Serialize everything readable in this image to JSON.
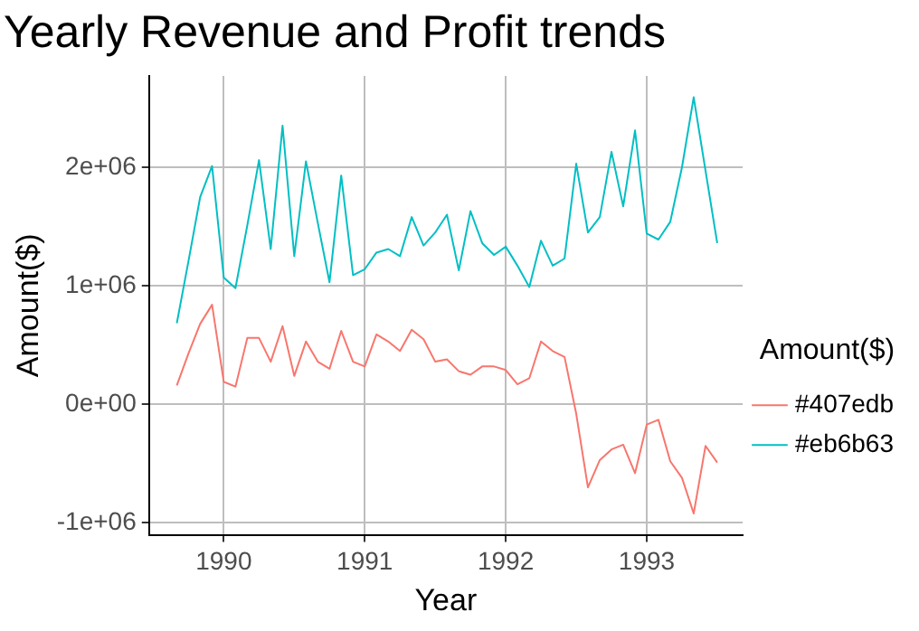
{
  "chart_data": {
    "type": "line",
    "title": "Yearly Revenue and Profit trends",
    "xlabel": "Year",
    "ylabel": "Amount($)",
    "legend_title": "Amount($)",
    "x": [
      1989.667,
      1989.75,
      1989.833,
      1989.917,
      1990,
      1990.083,
      1990.167,
      1990.25,
      1990.333,
      1990.417,
      1990.5,
      1990.583,
      1990.667,
      1990.75,
      1990.833,
      1990.917,
      1991,
      1991.083,
      1991.167,
      1991.25,
      1991.333,
      1991.417,
      1991.5,
      1991.583,
      1991.667,
      1991.75,
      1991.833,
      1991.917,
      1992,
      1992.083,
      1992.167,
      1992.25,
      1992.333,
      1992.417,
      1992.5,
      1992.583,
      1992.667,
      1992.75,
      1992.833,
      1992.917,
      1993,
      1993.083,
      1993.167,
      1993.25,
      1993.333,
      1993.417,
      1993.5
    ],
    "series": [
      {
        "name": "#407edb",
        "color": "#f8766d",
        "values": [
          160000,
          430000,
          680000,
          840000,
          190000,
          150000,
          560000,
          560000,
          360000,
          660000,
          240000,
          530000,
          360000,
          300000,
          620000,
          360000,
          320000,
          590000,
          530000,
          450000,
          630000,
          550000,
          360000,
          380000,
          280000,
          250000,
          320000,
          320000,
          290000,
          170000,
          220000,
          530000,
          450000,
          400000,
          -80000,
          -700000,
          -470000,
          -380000,
          -340000,
          -580000,
          -170000,
          -130000,
          -480000,
          -620000,
          -920000,
          -350000,
          -490000
        ]
      },
      {
        "name": "#eb6b63",
        "color": "#00bfc4",
        "values": [
          685000,
          1210000,
          1750000,
          2010000,
          1070000,
          980000,
          1510000,
          2060000,
          1310000,
          2350000,
          1250000,
          2050000,
          1530000,
          1030000,
          1930000,
          1090000,
          1140000,
          1280000,
          1310000,
          1250000,
          1580000,
          1340000,
          1450000,
          1600000,
          1130000,
          1630000,
          1360000,
          1260000,
          1330000,
          1170000,
          990000,
          1380000,
          1170000,
          1230000,
          2030000,
          1450000,
          1580000,
          2130000,
          1670000,
          2310000,
          1440000,
          1390000,
          1540000,
          2000000,
          2590000,
          1970000,
          1360000
        ]
      }
    ],
    "xlim": [
      1989.47,
      1993.68
    ],
    "xticks": [
      1990,
      1991,
      1992,
      1993
    ],
    "ylim": [
      -1100000,
      2770000
    ],
    "yticks": [
      {
        "value": -1000000,
        "label": "-1e+06"
      },
      {
        "value": 0,
        "label": "0e+00"
      },
      {
        "value": 1000000,
        "label": "1e+06"
      },
      {
        "value": 2000000,
        "label": "2e+06"
      }
    ],
    "grid": true,
    "legend": "right",
    "marker": "none",
    "line_style": "solid"
  }
}
